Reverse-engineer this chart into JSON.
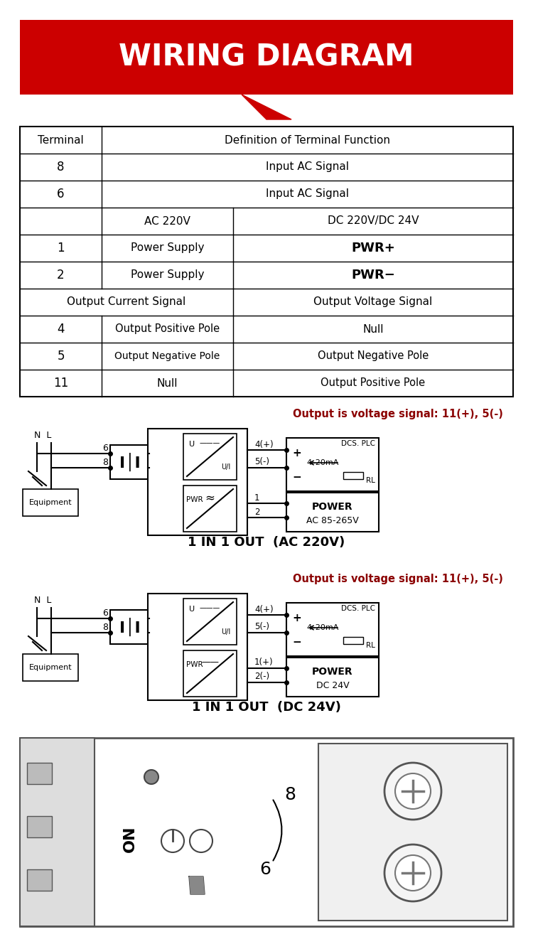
{
  "title": "WIRING DIAGRAM",
  "title_bg": "#CC0000",
  "title_text_color": "#FFFFFF",
  "table_data": [
    [
      "Terminal",
      "Definition of Terminal Function",
      "",
      ""
    ],
    [
      "8",
      "Input AC Signal",
      "",
      ""
    ],
    [
      "6",
      "Input AC Signal",
      "",
      ""
    ],
    [
      "",
      "AC 220V",
      "DC 220V/DC 24V",
      ""
    ],
    [
      "1",
      "Power Supply",
      "PWR+",
      ""
    ],
    [
      "2",
      "Power Supply",
      "PWR−",
      ""
    ],
    [
      "Output Current Signal",
      "",
      "Output Voltage Signal",
      ""
    ],
    [
      "4",
      "Output Positive Pole",
      "Null",
      ""
    ],
    [
      "5",
      "Output Negative Pole",
      "Output Negative Pole",
      ""
    ],
    [
      "11",
      "Null",
      "Output Positive Pole",
      ""
    ]
  ],
  "diagram1_title": "Output is voltage signal: 11(+), 5(-)",
  "diagram1_subtitle": "1 IN 1 OUT  (AC 220V)",
  "diagram2_title": "Output is voltage signal: 11(+), 5(-)",
  "diagram2_subtitle": "1 IN 1 OUT  (DC 24V)",
  "accent_color": "#8B0000",
  "line_color": "#000000",
  "bg_color": "#FFFFFF"
}
